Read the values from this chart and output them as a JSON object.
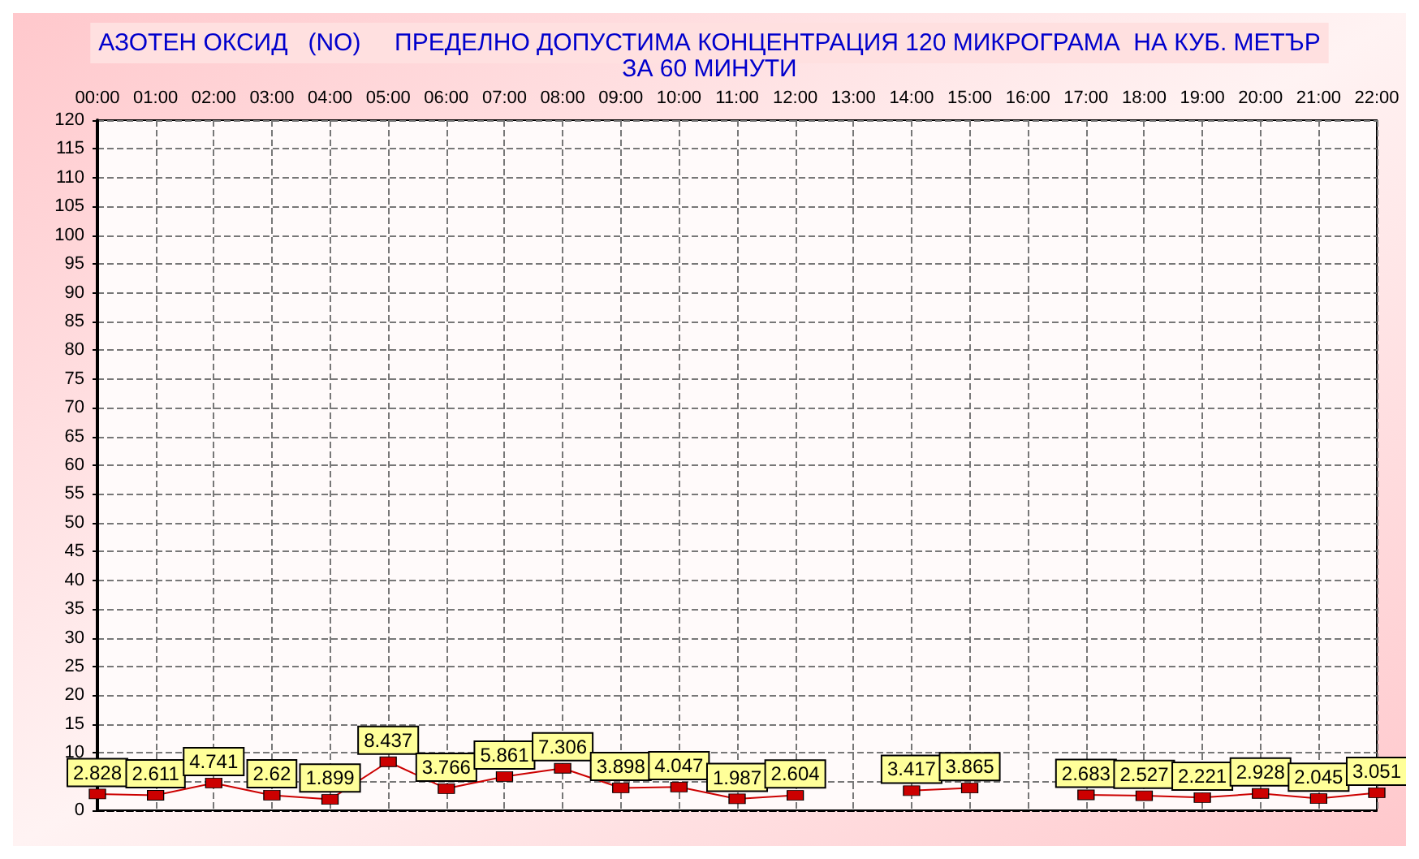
{
  "chart_data": {
    "type": "line",
    "title": "АЗОТЕН ОКСИД   (NO)     ПРЕДЕЛНО ДОПУСТИМА КОНЦЕНТРАЦИЯ 120 МИКРОГРАМА  НА КУБ. МЕТЪР",
    "subtitle": "ЗА 60 МИНУТИ",
    "categories": [
      "00:00",
      "01:00",
      "02:00",
      "03:00",
      "04:00",
      "05:00",
      "06:00",
      "07:00",
      "08:00",
      "09:00",
      "10:00",
      "11:00",
      "12:00",
      "13:00",
      "14:00",
      "15:00",
      "16:00",
      "17:00",
      "18:00",
      "19:00",
      "20:00",
      "21:00",
      "22:00"
    ],
    "series": [
      {
        "color": "#cc0000",
        "values": [
          2.828,
          2.611,
          4.741,
          2.62,
          1.899,
          8.437,
          3.766,
          5.861,
          7.306,
          3.898,
          4.047,
          1.987,
          2.604,
          null,
          3.417,
          3.865,
          null,
          2.683,
          2.527,
          2.221,
          2.928,
          2.045,
          3.051
        ]
      }
    ],
    "ylim": [
      0,
      120
    ],
    "yticks": [
      0,
      {
        "value": 5,
        "label": null
      },
      10,
      15,
      20,
      25,
      30,
      35,
      40,
      45,
      50,
      55,
      60,
      65,
      70,
      75,
      80,
      85,
      90,
      95,
      100,
      105,
      110,
      115,
      120
    ],
    "grid": true,
    "marker": "square",
    "line_style": "solid",
    "data_labels": true
  }
}
